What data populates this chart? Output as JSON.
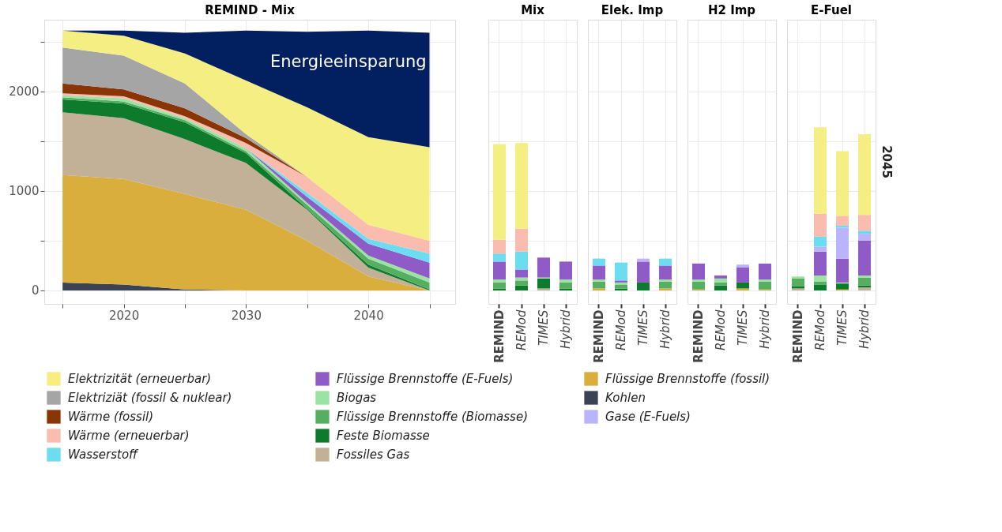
{
  "chart_data": [
    {
      "type": "area",
      "title": "REMIND - Mix",
      "stacked": true,
      "x": [
        2015,
        2020,
        2025,
        2030,
        2035,
        2040,
        2045
      ],
      "xlim": [
        2013.5,
        2047.1
      ],
      "xticks": [
        {
          "value": 2015,
          "label": null
        },
        2020,
        {
          "value": 2025,
          "label": null
        },
        2030,
        {
          "value": 2035,
          "label": null
        },
        2040,
        {
          "value": 2045,
          "label": null
        }
      ],
      "ylim": [
        -135,
        2720
      ],
      "yticks": [
        0,
        {
          "value": 500,
          "label": null
        },
        1000,
        {
          "value": 1500,
          "label": null
        },
        2000,
        {
          "value": 2500,
          "label": null
        }
      ],
      "grid": true,
      "legend": "bottom",
      "annotations": [
        "Energieeinsparung"
      ],
      "series": [
        {
          "name": "Kohlen",
          "color": "#3a4254",
          "values": [
            80,
            60,
            10,
            0,
            0,
            0,
            0
          ]
        },
        {
          "name": "Flüssige Brennstoffe (fossil)",
          "color": "#d9ae3d",
          "values": [
            1080,
            1060,
            960,
            810,
            500,
            140,
            0
          ]
        },
        {
          "name": "Fossiles Gas",
          "color": "#c2b097",
          "values": [
            630,
            610,
            550,
            470,
            310,
            90,
            0
          ]
        },
        {
          "name": "Feste Biomasse",
          "color": "#0e7a2b",
          "values": [
            130,
            150,
            170,
            100,
            10,
            30,
            10
          ]
        },
        {
          "name": "Flüssige Brennstoffe (Biomasse)",
          "color": "#56ae61",
          "values": [
            20,
            20,
            20,
            20,
            40,
            60,
            70
          ]
        },
        {
          "name": "Biogas",
          "color": "#9be3a5",
          "values": [
            20,
            30,
            20,
            30,
            20,
            30,
            40
          ]
        },
        {
          "name": "Flüssige Brennstoffe (E-Fuels)",
          "color": "#8f5bc6",
          "values": [
            0,
            0,
            0,
            0,
            60,
            120,
            160
          ]
        },
        {
          "name": "Wasserstoff",
          "color": "#6cdcf0",
          "values": [
            0,
            0,
            0,
            0,
            40,
            50,
            90
          ]
        },
        {
          "name": "Wärme (erneuerbar)",
          "color": "#fbbcb0",
          "values": [
            20,
            20,
            20,
            50,
            160,
            140,
            130
          ]
        },
        {
          "name": "Wärme (fossil)",
          "color": "#8a3506",
          "values": [
            100,
            70,
            80,
            50,
            0,
            0,
            0
          ]
        },
        {
          "name": "Elektriziät (fossil & nuklear)",
          "color": "#a5a5a5",
          "values": [
            360,
            340,
            250,
            40,
            0,
            0,
            0
          ]
        },
        {
          "name": "Elektrizität (erneuerbar)",
          "color": "#f5ee83",
          "values": [
            170,
            200,
            300,
            540,
            700,
            880,
            940
          ]
        },
        {
          "color": "#02205f",
          "values": [
            0,
            50,
            210,
            500,
            760,
            1070,
            1150
          ]
        }
      ]
    },
    {
      "type": "bar",
      "title": "Mix",
      "stacked": true,
      "categories": [
        "REMIND",
        "REMod",
        "TIMES",
        "Hybrid"
      ],
      "ylim": [
        -135,
        2720
      ],
      "yticks": [
        0,
        500,
        1000,
        1500,
        2000,
        2500
      ],
      "tick_labels": "x",
      "grid": true,
      "series": [
        {
          "color": "#d9ae3d",
          "values": [
            0,
            0,
            0,
            0
          ]
        },
        {
          "color": "#c2b097",
          "values": [
            0,
            0,
            20,
            0
          ]
        },
        {
          "color": "#0e7a2b",
          "values": [
            20,
            50,
            100,
            20
          ]
        },
        {
          "color": "#56ae61",
          "values": [
            60,
            50,
            0,
            60
          ]
        },
        {
          "color": "#9be3a5",
          "values": [
            30,
            30,
            10,
            30
          ]
        },
        {
          "color": "#8f5bc6",
          "values": [
            180,
            80,
            200,
            180
          ]
        },
        {
          "color": "#bcb4fa",
          "values": [
            0,
            0,
            null,
            0
          ]
        },
        {
          "color": "#6cdcf0",
          "values": [
            80,
            180,
            null,
            null
          ]
        },
        {
          "color": "#fbbcb0",
          "values": [
            140,
            230,
            null,
            null
          ]
        },
        {
          "color": "#f5ee83",
          "values": [
            960,
            860,
            null,
            null
          ]
        }
      ]
    },
    {
      "type": "bar",
      "title": "Elek. Imp",
      "stacked": true,
      "categories": [
        "REMIND",
        "REMod",
        "TIMES",
        "Hybrid"
      ],
      "ylim": [
        -135,
        2720
      ],
      "yticks": [
        0,
        500,
        1000,
        1500,
        2000,
        2500
      ],
      "tick_labels": "x",
      "grid": true,
      "series": [
        {
          "color": "#d9ae3d",
          "values": [
            20,
            0,
            0,
            20
          ]
        },
        {
          "color": "#c2b097",
          "values": [
            0,
            0,
            0,
            0
          ]
        },
        {
          "color": "#0e7a2b",
          "values": [
            0,
            20,
            80,
            0
          ]
        },
        {
          "color": "#56ae61",
          "values": [
            70,
            40,
            0,
            70
          ]
        },
        {
          "color": "#9be3a5",
          "values": [
            20,
            20,
            0,
            20
          ]
        },
        {
          "color": "#8f5bc6",
          "values": [
            140,
            20,
            210,
            140
          ]
        },
        {
          "color": "#bcb4fa",
          "values": [
            0,
            0,
            30,
            0
          ]
        },
        {
          "color": "#6cdcf0",
          "values": [
            70,
            180,
            null,
            70
          ]
        }
      ]
    },
    {
      "type": "bar",
      "title": "H2 Imp",
      "stacked": true,
      "categories": [
        "REMIND",
        "REMod",
        "TIMES",
        "Hybrid"
      ],
      "ylim": [
        -135,
        2720
      ],
      "yticks": [
        0,
        500,
        1000,
        1500,
        2000,
        2500
      ],
      "tick_labels": "x",
      "grid": true,
      "series": [
        {
          "color": "#d9ae3d",
          "values": [
            10,
            0,
            20,
            10
          ]
        },
        {
          "color": "#c2b097",
          "values": [
            0,
            0,
            0,
            0
          ]
        },
        {
          "color": "#0e7a2b",
          "values": [
            0,
            50,
            60,
            0
          ]
        },
        {
          "color": "#56ae61",
          "values": [
            80,
            30,
            0,
            80
          ]
        },
        {
          "color": "#9be3a5",
          "values": [
            20,
            40,
            0,
            20
          ]
        },
        {
          "color": "#8f5bc6",
          "values": [
            160,
            30,
            150,
            160
          ]
        },
        {
          "color": "#bcb4fa",
          "values": [
            0,
            0,
            30,
            0
          ]
        }
      ]
    },
    {
      "type": "bar",
      "title": "E-Fuel",
      "stacked": true,
      "categories": [
        "REMIND",
        "REMod",
        "TIMES",
        "Hybrid"
      ],
      "ylim": [
        -135,
        2720
      ],
      "yticks": [
        0,
        500,
        1000,
        1500,
        2000,
        2500
      ],
      "tick_labels": "x",
      "grid": true,
      "annotations": [
        "2045"
      ],
      "series": [
        {
          "color": "#d9ae3d",
          "values": [
            0,
            0,
            10,
            0
          ]
        },
        {
          "color": "#c2b097",
          "values": [
            20,
            0,
            0,
            30
          ]
        },
        {
          "color": "#0e7a2b",
          "values": [
            20,
            60,
            60,
            20
          ]
        },
        {
          "color": "#56ae61",
          "values": [
            80,
            30,
            0,
            80
          ]
        },
        {
          "color": "#9be3a5",
          "values": [
            20,
            60,
            10,
            20
          ]
        },
        {
          "color": "#8f5bc6",
          "values": [
            null,
            240,
            240,
            350
          ]
        },
        {
          "name": "Gase (E-Fuels)",
          "color": "#bcb4fa",
          "values": [
            null,
            50,
            310,
            70
          ]
        },
        {
          "color": "#6cdcf0",
          "values": [
            null,
            100,
            20,
            30
          ]
        },
        {
          "color": "#fbbcb0",
          "values": [
            null,
            230,
            100,
            160
          ]
        },
        {
          "color": "#f5ee83",
          "values": [
            null,
            870,
            650,
            810
          ]
        }
      ]
    }
  ]
}
